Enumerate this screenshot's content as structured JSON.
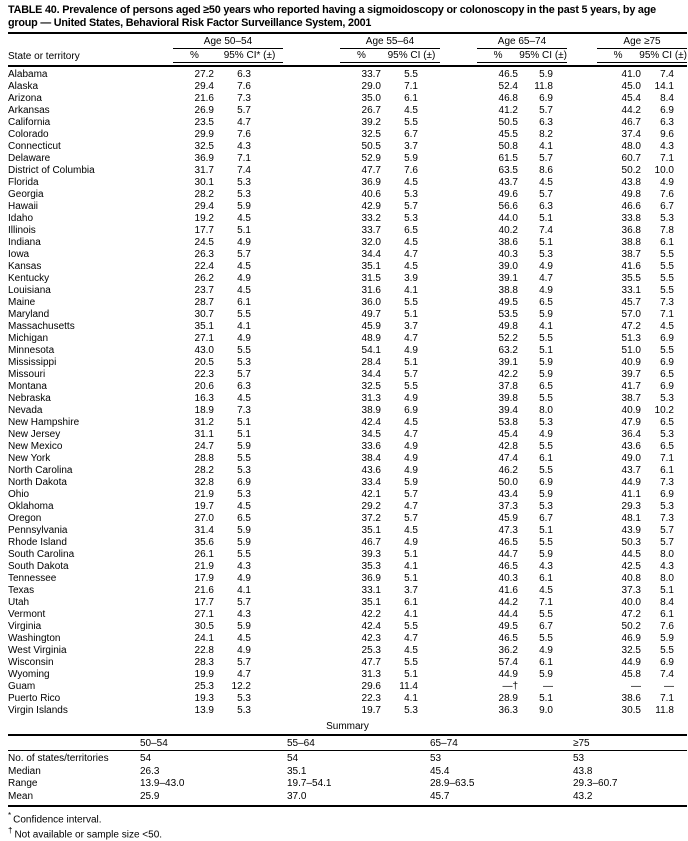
{
  "title": "TABLE 40.  Prevalence of persons aged ≥50 years who reported having a sigmoidoscopy or colonoscopy in the past 5 years, by age group — United States, Behavioral Risk Factor Surveillance System, 2001",
  "header": {
    "state_col": "State or territory",
    "groups": [
      {
        "label": "Age 50–54",
        "pct": "%",
        "ci": "95% CI* (±)"
      },
      {
        "label": "Age 55–64",
        "pct": "%",
        "ci": "95% CI (±)"
      },
      {
        "label": "Age 65–74",
        "pct": "%",
        "ci": "95% CI (±)"
      },
      {
        "label": "Age ≥75",
        "pct": "%",
        "ci": "95% CI (±)"
      }
    ]
  },
  "rows": [
    {
      "state": "Alabama",
      "v": [
        "27.2",
        "6.3",
        "33.7",
        "5.5",
        "46.5",
        "5.9",
        "41.0",
        "7.4"
      ]
    },
    {
      "state": "Alaska",
      "v": [
        "29.4",
        "7.6",
        "29.0",
        "7.1",
        "52.4",
        "11.8",
        "45.0",
        "14.1"
      ]
    },
    {
      "state": "Arizona",
      "v": [
        "21.6",
        "7.3",
        "35.0",
        "6.1",
        "46.8",
        "6.9",
        "45.4",
        "8.4"
      ]
    },
    {
      "state": "Arkansas",
      "v": [
        "26.9",
        "5.7",
        "26.7",
        "4.5",
        "41.2",
        "5.7",
        "44.2",
        "6.9"
      ]
    },
    {
      "state": "California",
      "v": [
        "23.5",
        "4.7",
        "39.2",
        "5.5",
        "50.5",
        "6.3",
        "46.7",
        "6.3"
      ]
    },
    {
      "state": "Colorado",
      "v": [
        "29.9",
        "7.6",
        "32.5",
        "6.7",
        "45.5",
        "8.2",
        "37.4",
        "9.6"
      ]
    },
    {
      "state": "Connecticut",
      "v": [
        "32.5",
        "4.3",
        "50.5",
        "3.7",
        "50.8",
        "4.1",
        "48.0",
        "4.3"
      ]
    },
    {
      "state": "Delaware",
      "v": [
        "36.9",
        "7.1",
        "52.9",
        "5.9",
        "61.5",
        "5.7",
        "60.7",
        "7.1"
      ]
    },
    {
      "state": "District of Columbia",
      "v": [
        "31.7",
        "7.4",
        "47.7",
        "7.6",
        "63.5",
        "8.6",
        "50.2",
        "10.0"
      ]
    },
    {
      "state": "Florida",
      "v": [
        "30.1",
        "5.3",
        "36.9",
        "4.5",
        "43.7",
        "4.5",
        "43.8",
        "4.9"
      ]
    },
    {
      "state": "Georgia",
      "v": [
        "28.2",
        "5.3",
        "40.6",
        "5.3",
        "49.6",
        "5.7",
        "49.8",
        "7.6"
      ]
    },
    {
      "state": "Hawaii",
      "v": [
        "29.4",
        "5.9",
        "42.9",
        "5.7",
        "56.6",
        "6.3",
        "46.6",
        "6.7"
      ]
    },
    {
      "state": "Idaho",
      "v": [
        "19.2",
        "4.5",
        "33.2",
        "5.3",
        "44.0",
        "5.1",
        "33.8",
        "5.3"
      ]
    },
    {
      "state": "Illinois",
      "v": [
        "17.7",
        "5.1",
        "33.7",
        "6.5",
        "40.2",
        "7.4",
        "36.8",
        "7.8"
      ]
    },
    {
      "state": "Indiana",
      "v": [
        "24.5",
        "4.9",
        "32.0",
        "4.5",
        "38.6",
        "5.1",
        "38.8",
        "6.1"
      ]
    },
    {
      "state": "Iowa",
      "v": [
        "26.3",
        "5.7",
        "34.4",
        "4.7",
        "40.3",
        "5.3",
        "38.7",
        "5.5"
      ]
    },
    {
      "state": "Kansas",
      "v": [
        "22.4",
        "4.5",
        "35.1",
        "4.5",
        "39.0",
        "4.9",
        "41.6",
        "5.5"
      ]
    },
    {
      "state": "Kentucky",
      "v": [
        "26.2",
        "4.9",
        "31.5",
        "3.9",
        "39.1",
        "4.7",
        "35.5",
        "5.5"
      ]
    },
    {
      "state": "Louisiana",
      "v": [
        "23.7",
        "4.5",
        "31.6",
        "4.1",
        "38.8",
        "4.9",
        "33.1",
        "5.5"
      ]
    },
    {
      "state": "Maine",
      "v": [
        "28.7",
        "6.1",
        "36.0",
        "5.5",
        "49.5",
        "6.5",
        "45.7",
        "7.3"
      ]
    },
    {
      "state": "Maryland",
      "v": [
        "30.7",
        "5.5",
        "49.7",
        "5.1",
        "53.5",
        "5.9",
        "57.0",
        "7.1"
      ]
    },
    {
      "state": "Massachusetts",
      "v": [
        "35.1",
        "4.1",
        "45.9",
        "3.7",
        "49.8",
        "4.1",
        "47.2",
        "4.5"
      ]
    },
    {
      "state": "Michigan",
      "v": [
        "27.1",
        "4.9",
        "48.9",
        "4.7",
        "52.2",
        "5.5",
        "51.3",
        "6.9"
      ]
    },
    {
      "state": "Minnesota",
      "v": [
        "43.0",
        "5.5",
        "54.1",
        "4.9",
        "63.2",
        "5.1",
        "51.0",
        "5.5"
      ]
    },
    {
      "state": "Mississippi",
      "v": [
        "20.5",
        "5.3",
        "28.4",
        "5.1",
        "39.1",
        "5.9",
        "40.9",
        "6.9"
      ]
    },
    {
      "state": "Missouri",
      "v": [
        "22.3",
        "5.7",
        "34.4",
        "5.7",
        "42.2",
        "5.9",
        "39.7",
        "6.5"
      ]
    },
    {
      "state": "Montana",
      "v": [
        "20.6",
        "6.3",
        "32.5",
        "5.5",
        "37.8",
        "6.5",
        "41.7",
        "6.9"
      ]
    },
    {
      "state": "Nebraska",
      "v": [
        "16.3",
        "4.5",
        "31.3",
        "4.9",
        "39.8",
        "5.5",
        "38.7",
        "5.3"
      ]
    },
    {
      "state": "Nevada",
      "v": [
        "18.9",
        "7.3",
        "38.9",
        "6.9",
        "39.4",
        "8.0",
        "40.9",
        "10.2"
      ]
    },
    {
      "state": "New Hampshire",
      "v": [
        "31.2",
        "5.1",
        "42.4",
        "4.5",
        "53.8",
        "5.3",
        "47.9",
        "6.5"
      ]
    },
    {
      "state": "New Jersey",
      "v": [
        "31.1",
        "5.1",
        "34.5",
        "4.7",
        "45.4",
        "4.9",
        "36.4",
        "5.3"
      ]
    },
    {
      "state": "New Mexico",
      "v": [
        "24.7",
        "5.9",
        "33.6",
        "4.9",
        "42.8",
        "5.5",
        "43.6",
        "6.5"
      ]
    },
    {
      "state": "New York",
      "v": [
        "28.8",
        "5.5",
        "38.4",
        "4.9",
        "47.4",
        "6.1",
        "49.0",
        "7.1"
      ]
    },
    {
      "state": "North Carolina",
      "v": [
        "28.2",
        "5.3",
        "43.6",
        "4.9",
        "46.2",
        "5.5",
        "43.7",
        "6.1"
      ]
    },
    {
      "state": "North Dakota",
      "v": [
        "32.8",
        "6.9",
        "33.4",
        "5.9",
        "50.0",
        "6.9",
        "44.9",
        "7.3"
      ]
    },
    {
      "state": "Ohio",
      "v": [
        "21.9",
        "5.3",
        "42.1",
        "5.7",
        "43.4",
        "5.9",
        "41.1",
        "6.9"
      ]
    },
    {
      "state": "Oklahoma",
      "v": [
        "19.7",
        "4.5",
        "29.2",
        "4.7",
        "37.3",
        "5.3",
        "29.3",
        "5.3"
      ]
    },
    {
      "state": "Oregon",
      "v": [
        "27.0",
        "6.5",
        "37.2",
        "5.7",
        "45.9",
        "6.7",
        "48.1",
        "7.3"
      ]
    },
    {
      "state": "Pennsylvania",
      "v": [
        "31.4",
        "5.9",
        "35.1",
        "4.5",
        "47.3",
        "5.1",
        "43.9",
        "5.7"
      ]
    },
    {
      "state": "Rhode Island",
      "v": [
        "35.6",
        "5.9",
        "46.7",
        "4.9",
        "46.5",
        "5.5",
        "50.3",
        "5.7"
      ]
    },
    {
      "state": "South Carolina",
      "v": [
        "26.1",
        "5.5",
        "39.3",
        "5.1",
        "44.7",
        "5.9",
        "44.5",
        "8.0"
      ]
    },
    {
      "state": "South Dakota",
      "v": [
        "21.9",
        "4.3",
        "35.3",
        "4.1",
        "46.5",
        "4.3",
        "42.5",
        "4.3"
      ]
    },
    {
      "state": "Tennessee",
      "v": [
        "17.9",
        "4.9",
        "36.9",
        "5.1",
        "40.3",
        "6.1",
        "40.8",
        "8.0"
      ]
    },
    {
      "state": "Texas",
      "v": [
        "21.6",
        "4.1",
        "33.1",
        "3.7",
        "41.6",
        "4.5",
        "37.3",
        "5.1"
      ]
    },
    {
      "state": "Utah",
      "v": [
        "17.7",
        "5.7",
        "35.1",
        "6.1",
        "44.2",
        "7.1",
        "40.0",
        "8.4"
      ]
    },
    {
      "state": "Vermont",
      "v": [
        "27.1",
        "4.3",
        "42.2",
        "4.1",
        "44.4",
        "5.5",
        "47.2",
        "6.1"
      ]
    },
    {
      "state": "Virginia",
      "v": [
        "30.5",
        "5.9",
        "42.4",
        "5.5",
        "49.5",
        "6.7",
        "50.2",
        "7.6"
      ]
    },
    {
      "state": "Washington",
      "v": [
        "24.1",
        "4.5",
        "42.3",
        "4.7",
        "46.5",
        "5.5",
        "46.9",
        "5.9"
      ]
    },
    {
      "state": "West Virginia",
      "v": [
        "22.8",
        "4.9",
        "25.3",
        "4.5",
        "36.2",
        "4.9",
        "32.5",
        "5.5"
      ]
    },
    {
      "state": "Wisconsin",
      "v": [
        "28.3",
        "5.7",
        "47.7",
        "5.5",
        "57.4",
        "6.1",
        "44.9",
        "6.9"
      ]
    },
    {
      "state": "Wyoming",
      "v": [
        "19.9",
        "4.7",
        "31.3",
        "5.1",
        "44.9",
        "5.9",
        "45.8",
        "7.4"
      ]
    },
    {
      "state": "Guam",
      "v": [
        "25.3",
        "12.2",
        "29.6",
        "11.4",
        "—†",
        "—",
        "—",
        "—"
      ]
    },
    {
      "state": "Puerto Rico",
      "v": [
        "19.3",
        "5.3",
        "22.3",
        "4.1",
        "28.9",
        "5.1",
        "38.6",
        "7.1"
      ]
    },
    {
      "state": "Virgin Islands",
      "v": [
        "13.9",
        "5.3",
        "19.7",
        "5.3",
        "36.3",
        "9.0",
        "30.5",
        "11.8"
      ]
    }
  ],
  "summary": {
    "title": "Summary",
    "col_headers": [
      "50–54",
      "55–64",
      "65–74",
      "≥75"
    ],
    "rows": [
      {
        "label": "No. of states/territories",
        "values": [
          "54",
          "54",
          "53",
          "53"
        ]
      },
      {
        "label": "Median",
        "values": [
          "26.3",
          "35.1",
          "45.4",
          "43.8"
        ]
      },
      {
        "label": "Range",
        "values": [
          "13.9–43.0",
          "19.7–54.1",
          "28.9–63.5",
          "29.3–60.7"
        ]
      },
      {
        "label": "Mean",
        "values": [
          "25.9",
          "37.0",
          "45.7",
          "43.2"
        ]
      }
    ]
  },
  "footnotes": [
    {
      "marker": "*",
      "text": "Confidence interval."
    },
    {
      "marker": "†",
      "text": "Not available or sample size <50."
    }
  ]
}
